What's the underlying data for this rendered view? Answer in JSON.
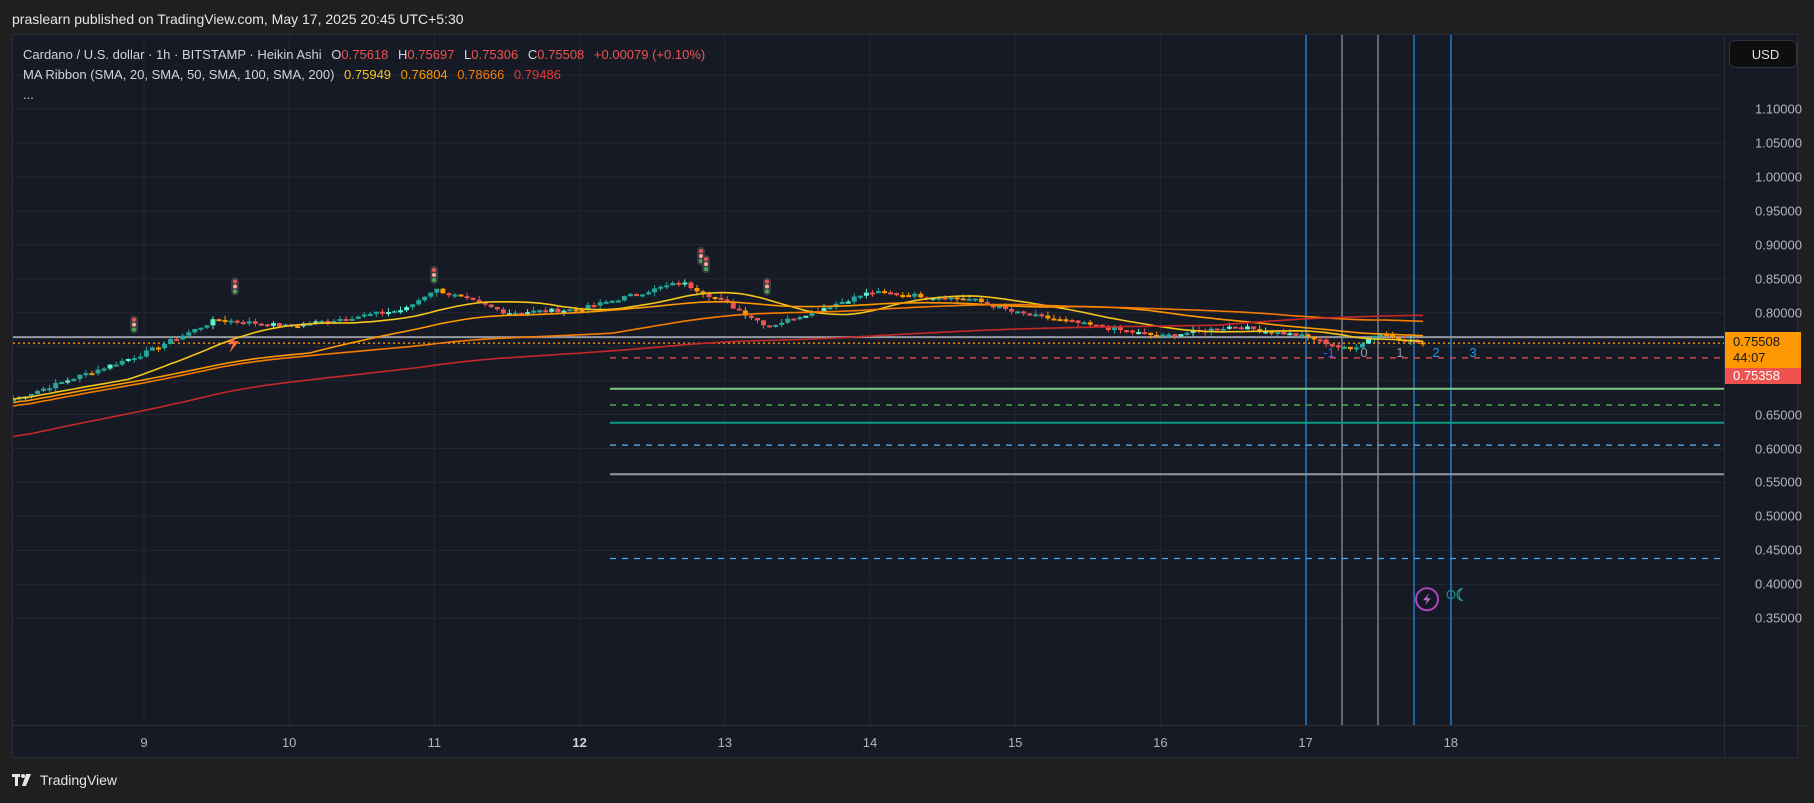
{
  "header": {
    "published_text": "praslearn published on TradingView.com, May 17, 2025 20:45 UTC+5:30"
  },
  "legend": {
    "symbol_line": "Cardano / U.S. dollar · 1h · BITSTAMP · Heikin Ashi",
    "ohlc": {
      "o_label": "O",
      "o": "0.75618",
      "h_label": "H",
      "h": "0.75697",
      "l_label": "L",
      "l": "0.75306",
      "c_label": "C",
      "c": "0.75508",
      "change": "+0.00079 (+0.10%)"
    },
    "ma_ribbon_label": "MA Ribbon (SMA, 20, SMA, 50, SMA, 100, SMA, 200)",
    "ma_values": [
      "0.75949",
      "0.76804",
      "0.78666",
      "0.79486"
    ],
    "more": "..."
  },
  "currency_button": "USD",
  "price_tags": {
    "last_price": "0.75508",
    "countdown": "44:07",
    "second_price": "0.75358"
  },
  "bar_counts": [
    "-1",
    "0",
    "1",
    "2",
    "3"
  ],
  "footer": {
    "brand": "TradingView"
  },
  "colors": {
    "background": "#161a25",
    "up_candle": "#26a69a",
    "down_candle": "#ef5350",
    "ma20": "#f5c518",
    "ma50": "#ff9800",
    "ma100": "#f57c00",
    "ma200": "#c62828",
    "last_price_tag": "#ff9800",
    "second_price_tag": "#ef5350"
  },
  "chart_data": {
    "type": "candlestick",
    "title": "Cardano / U.S. dollar · 1h · BITSTAMP · Heikin Ashi",
    "xlabel": "",
    "ylabel": "USD",
    "x_ticks": [
      "9",
      "10",
      "11",
      "12",
      "13",
      "14",
      "15",
      "16",
      "17",
      "18"
    ],
    "y_ticks": [
      "1.10000",
      "1.05000",
      "1.00000",
      "0.95000",
      "0.90000",
      "0.85000",
      "0.80000",
      "0.65000",
      "0.60000",
      "0.55000",
      "0.50000",
      "0.45000",
      "0.40000",
      "0.35000"
    ],
    "ylim": [
      0.35,
      1.15
    ],
    "grid": true,
    "approx_close_by_day": [
      {
        "x": "8",
        "close": 0.665
      },
      {
        "x": "9",
        "close": 0.74
      },
      {
        "x": "9.5",
        "close": 0.79
      },
      {
        "x": "10",
        "close": 0.78
      },
      {
        "x": "10.8",
        "close": 0.805
      },
      {
        "x": "11",
        "close": 0.835
      },
      {
        "x": "11.5",
        "close": 0.8
      },
      {
        "x": "12",
        "close": 0.805
      },
      {
        "x": "12.7",
        "close": 0.845
      },
      {
        "x": "13",
        "close": 0.815
      },
      {
        "x": "13.3",
        "close": 0.78
      },
      {
        "x": "14",
        "close": 0.83
      },
      {
        "x": "14.7",
        "close": 0.82
      },
      {
        "x": "15",
        "close": 0.8
      },
      {
        "x": "15.7",
        "close": 0.775
      },
      {
        "x": "16",
        "close": 0.765
      },
      {
        "x": "16.5",
        "close": 0.78
      },
      {
        "x": "17",
        "close": 0.765
      },
      {
        "x": "17.3",
        "close": 0.745
      },
      {
        "x": "17.5",
        "close": 0.77
      },
      {
        "x": "17.8",
        "close": 0.755
      }
    ],
    "series": [
      {
        "name": "SMA 20",
        "last": 0.75949
      },
      {
        "name": "SMA 50",
        "last": 0.76804
      },
      {
        "name": "SMA 100",
        "last": 0.78666
      },
      {
        "name": "SMA 200",
        "last": 0.79486
      }
    ],
    "horizontal_levels": [
      {
        "price": 0.764,
        "style": "solid",
        "color": "#9598a1"
      },
      {
        "price": 0.75508,
        "style": "dotted",
        "color": "#ff9800",
        "label": "last price"
      },
      {
        "price": 0.7335,
        "style": "dashed",
        "color": "#ef5350"
      },
      {
        "price": 0.688,
        "style": "solid",
        "color": "#81c784"
      },
      {
        "price": 0.664,
        "style": "dashed",
        "color": "#4caf50"
      },
      {
        "price": 0.638,
        "style": "solid",
        "color": "#089981"
      },
      {
        "price": 0.605,
        "style": "dashed",
        "color": "#64b5f6"
      },
      {
        "price": 0.562,
        "style": "solid",
        "color": "#9598a1"
      },
      {
        "price": 0.438,
        "style": "dashed",
        "color": "#42a5f5"
      }
    ],
    "vertical_lines_labels": [
      "-1",
      "0",
      "1",
      "2",
      "3"
    ],
    "annotations": [
      "traffic-light markers",
      "lightning marker",
      "0.75508 last price",
      "44:07 countdown",
      "0.75358"
    ]
  }
}
